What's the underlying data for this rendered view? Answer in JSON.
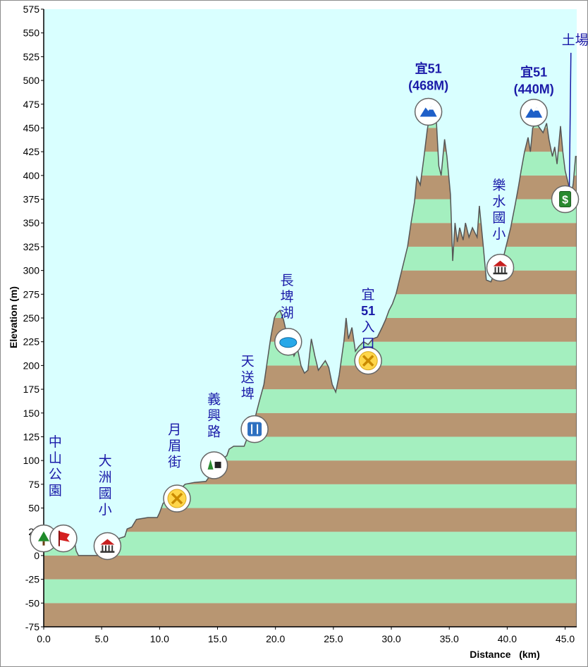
{
  "chart_data": {
    "type": "area",
    "title": "",
    "xlabel": "Distance   (km)",
    "ylabel": "Elevation (m)",
    "xlim": [
      0,
      46.0
    ],
    "ylim": [
      -75,
      575
    ],
    "xticks": [
      "0.0",
      "5.0",
      "10.0",
      "15.0",
      "20.0",
      "25.0",
      "30.0",
      "35.0",
      "40.0",
      "45.0"
    ],
    "yticks": [
      "575",
      "550",
      "525",
      "500",
      "475",
      "450",
      "425",
      "400",
      "375",
      "350",
      "325",
      "300",
      "275",
      "250",
      "225",
      "200",
      "175",
      "150",
      "125",
      "100",
      "75",
      "50",
      "25",
      "0",
      "-25",
      "-50",
      "-75"
    ],
    "band_colors": [
      "#b89672",
      "#a4efbf"
    ],
    "sky_color": "#d9ffff",
    "series": [
      {
        "values": [
          [
            0.0,
            20
          ],
          [
            0.5,
            20
          ],
          [
            1.0,
            20
          ],
          [
            1.5,
            22
          ],
          [
            2.0,
            22
          ],
          [
            2.6,
            20
          ],
          [
            2.8,
            5
          ],
          [
            3.0,
            0
          ],
          [
            4.0,
            0
          ],
          [
            5.0,
            0
          ],
          [
            5.5,
            5
          ],
          [
            6.0,
            12
          ],
          [
            6.5,
            18
          ],
          [
            7.0,
            20
          ],
          [
            7.2,
            28
          ],
          [
            7.6,
            30
          ],
          [
            8.0,
            38
          ],
          [
            9.0,
            40
          ],
          [
            9.8,
            40
          ],
          [
            10.0,
            45
          ],
          [
            10.3,
            55
          ],
          [
            10.6,
            58
          ],
          [
            11.0,
            60
          ],
          [
            11.5,
            62
          ],
          [
            11.8,
            70
          ],
          [
            12.2,
            75
          ],
          [
            13.0,
            77
          ],
          [
            14.0,
            78
          ],
          [
            14.4,
            85
          ],
          [
            14.8,
            95
          ],
          [
            15.2,
            100
          ],
          [
            15.8,
            105
          ],
          [
            16.0,
            112
          ],
          [
            16.4,
            115
          ],
          [
            17.3,
            115
          ],
          [
            17.6,
            125
          ],
          [
            18.0,
            130
          ],
          [
            18.3,
            148
          ],
          [
            18.6,
            162
          ],
          [
            19.0,
            180
          ],
          [
            19.3,
            205
          ],
          [
            19.6,
            230
          ],
          [
            19.9,
            250
          ],
          [
            20.1,
            255
          ],
          [
            20.4,
            258
          ],
          [
            20.7,
            248
          ],
          [
            21.0,
            232
          ],
          [
            21.3,
            222
          ],
          [
            21.6,
            210
          ],
          [
            21.9,
            218
          ],
          [
            22.2,
            200
          ],
          [
            22.5,
            192
          ],
          [
            22.8,
            195
          ],
          [
            23.1,
            228
          ],
          [
            23.4,
            210
          ],
          [
            23.7,
            195
          ],
          [
            24.0,
            200
          ],
          [
            24.3,
            205
          ],
          [
            24.6,
            198
          ],
          [
            24.9,
            180
          ],
          [
            25.2,
            172
          ],
          [
            25.5,
            190
          ],
          [
            25.9,
            225
          ],
          [
            26.1,
            250
          ],
          [
            26.3,
            228
          ],
          [
            26.6,
            240
          ],
          [
            26.9,
            215
          ],
          [
            27.2,
            220
          ],
          [
            27.6,
            225
          ],
          [
            28.0,
            222
          ],
          [
            28.4,
            228
          ],
          [
            28.8,
            230
          ],
          [
            29.2,
            240
          ],
          [
            29.5,
            248
          ],
          [
            29.8,
            258
          ],
          [
            30.1,
            265
          ],
          [
            30.4,
            275
          ],
          [
            30.7,
            290
          ],
          [
            31.0,
            305
          ],
          [
            31.4,
            325
          ],
          [
            31.7,
            350
          ],
          [
            32.0,
            372
          ],
          [
            32.2,
            398
          ],
          [
            32.5,
            390
          ],
          [
            32.8,
            418
          ],
          [
            33.1,
            448
          ],
          [
            33.3,
            462
          ],
          [
            33.6,
            462
          ],
          [
            33.9,
            455
          ],
          [
            34.1,
            410
          ],
          [
            34.3,
            400
          ],
          [
            34.6,
            438
          ],
          [
            34.8,
            420
          ],
          [
            35.1,
            380
          ],
          [
            35.3,
            310
          ],
          [
            35.5,
            350
          ],
          [
            35.7,
            330
          ],
          [
            35.9,
            345
          ],
          [
            36.2,
            332
          ],
          [
            36.4,
            350
          ],
          [
            36.7,
            335
          ],
          [
            37.0,
            345
          ],
          [
            37.4,
            335
          ],
          [
            37.6,
            368
          ],
          [
            37.9,
            330
          ],
          [
            38.2,
            290
          ],
          [
            38.6,
            288
          ],
          [
            38.9,
            298
          ],
          [
            39.3,
            305
          ],
          [
            39.6,
            310
          ],
          [
            39.9,
            325
          ],
          [
            40.3,
            345
          ],
          [
            40.7,
            370
          ],
          [
            41.0,
            390
          ],
          [
            41.2,
            405
          ],
          [
            41.5,
            425
          ],
          [
            41.8,
            440
          ],
          [
            42.0,
            425
          ],
          [
            42.2,
            450
          ],
          [
            42.5,
            455
          ],
          [
            42.8,
            450
          ],
          [
            43.1,
            445
          ],
          [
            43.4,
            455
          ],
          [
            43.6,
            438
          ],
          [
            43.9,
            420
          ],
          [
            44.1,
            430
          ],
          [
            44.3,
            412
          ],
          [
            44.6,
            452
          ],
          [
            44.8,
            425
          ],
          [
            45.0,
            405
          ],
          [
            45.3,
            390
          ],
          [
            45.5,
            375
          ],
          [
            45.7,
            392
          ],
          [
            45.9,
            420
          ],
          [
            46.0,
            420
          ]
        ]
      }
    ],
    "waypoints": [
      {
        "icon": "tree-icon",
        "x": 0.0,
        "y": 18,
        "label": "中山公園",
        "label_x": 1.0,
        "label_y": 115,
        "vertical": true,
        "bold": false
      },
      {
        "icon": "flag-icon",
        "x": 1.7,
        "y": 18,
        "label": "",
        "vertical": true,
        "bold": false
      },
      {
        "icon": "school-icon",
        "x": 5.5,
        "y": 10,
        "label": "大洲國小",
        "label_x": 5.3,
        "label_y": 95,
        "vertical": true,
        "bold": false
      },
      {
        "icon": "crossing-icon",
        "x": 11.5,
        "y": 60,
        "label": "月眉街",
        "label_x": 11.3,
        "label_y": 128,
        "vertical": true,
        "bold": false
      },
      {
        "icon": "trail-icon",
        "x": 14.7,
        "y": 95,
        "label": "義興路",
        "label_x": 14.7,
        "label_y": 160,
        "vertical": true,
        "bold": false
      },
      {
        "icon": "restaurant-icon",
        "x": 18.2,
        "y": 133,
        "label": "天送埤",
        "label_x": 17.6,
        "label_y": 200,
        "vertical": true,
        "bold": false
      },
      {
        "icon": "lake-icon",
        "x": 21.1,
        "y": 225,
        "label": "長埤湖",
        "label_x": 21.0,
        "label_y": 285,
        "vertical": true,
        "bold": false
      },
      {
        "icon": "crossing-icon",
        "x": 28.0,
        "y": 205,
        "label": "宜51入口",
        "label_x": 28.0,
        "label_y": 270,
        "vertical": true,
        "bold": false
      },
      {
        "icon": "summit-icon",
        "x": 33.2,
        "y": 467,
        "label": "宜51",
        "label2": "(468M)",
        "label_x": 33.2,
        "label_y": 508,
        "vertical": false,
        "bold": true
      },
      {
        "icon": "school-icon",
        "x": 39.4,
        "y": 303,
        "label": "樂水國小",
        "label_x": 39.3,
        "label_y": 385,
        "vertical": true,
        "bold": false
      },
      {
        "icon": "summit-icon",
        "x": 42.3,
        "y": 466,
        "label": "宜51",
        "label2": "(440M)",
        "label_x": 42.3,
        "label_y": 504,
        "vertical": false,
        "bold": true
      },
      {
        "icon": "dollar-icon",
        "x": 45.0,
        "y": 375,
        "label": "土場",
        "label_x": 45.5,
        "label_y": 538,
        "vertical": false,
        "bold": false
      }
    ]
  }
}
